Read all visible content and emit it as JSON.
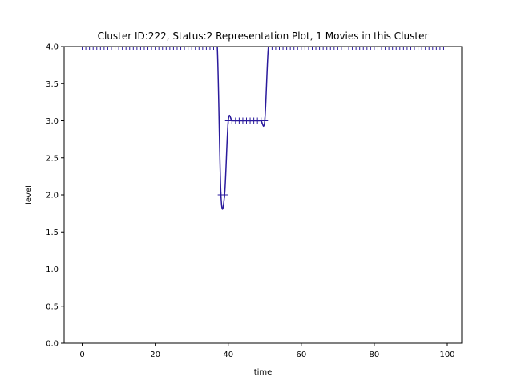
{
  "chart_data": {
    "type": "line",
    "title": "Cluster ID:222, Status:2 Representation Plot, 1 Movies in this Cluster",
    "xlabel": "time",
    "ylabel": "level",
    "xlim": [
      -4.95,
      103.95
    ],
    "ylim": [
      0.0,
      4.0
    ],
    "xticks": [
      "0",
      "20",
      "40",
      "60",
      "80",
      "100"
    ],
    "yticks": [
      "0.0",
      "0.5",
      "1.0",
      "1.5",
      "2.0",
      "2.5",
      "3.0",
      "3.5",
      "4.0"
    ],
    "grid": false,
    "legend": "none",
    "line_color": "#2a1a9c",
    "marker": "+",
    "x": [
      0,
      1,
      2,
      3,
      4,
      5,
      6,
      7,
      8,
      9,
      10,
      11,
      12,
      13,
      14,
      15,
      16,
      17,
      18,
      19,
      20,
      21,
      22,
      23,
      24,
      25,
      26,
      27,
      28,
      29,
      30,
      31,
      32,
      33,
      34,
      35,
      36,
      37,
      38,
      39,
      40,
      41,
      42,
      43,
      44,
      45,
      46,
      47,
      48,
      49,
      50,
      51,
      52,
      53,
      54,
      55,
      56,
      57,
      58,
      59,
      60,
      61,
      62,
      63,
      64,
      65,
      66,
      67,
      68,
      69,
      70,
      71,
      72,
      73,
      74,
      75,
      76,
      77,
      78,
      79,
      80,
      81,
      82,
      83,
      84,
      85,
      86,
      87,
      88,
      89,
      90,
      91,
      92,
      93,
      94,
      95,
      96,
      97,
      98,
      99
    ],
    "y": [
      4,
      4,
      4,
      4,
      4,
      4,
      4,
      4,
      4,
      4,
      4,
      4,
      4,
      4,
      4,
      4,
      4,
      4,
      4,
      4,
      4,
      4,
      4,
      4,
      4,
      4,
      4,
      4,
      4,
      4,
      4,
      4,
      4,
      4,
      4,
      4,
      4,
      4,
      2,
      2,
      3,
      3,
      3,
      3,
      3,
      3,
      3,
      3,
      3,
      3,
      3,
      4,
      4,
      4,
      4,
      4,
      4,
      4,
      4,
      4,
      4,
      4,
      4,
      4,
      4,
      4,
      4,
      4,
      4,
      4,
      4,
      4,
      4,
      4,
      4,
      4,
      4,
      4,
      4,
      4,
      4,
      4,
      4,
      4,
      4,
      4,
      4,
      4,
      4,
      4,
      4,
      4,
      4,
      4,
      4,
      4,
      4,
      4,
      4,
      4
    ]
  }
}
